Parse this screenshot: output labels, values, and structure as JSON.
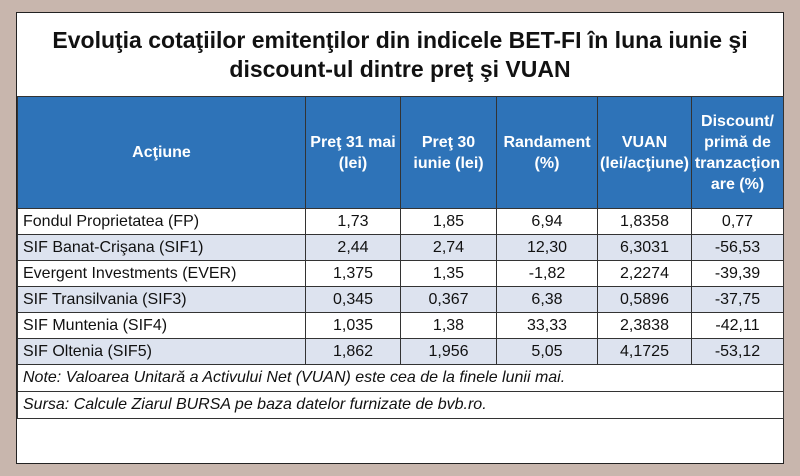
{
  "title": {
    "line1": "Evoluţia cotaţiilor emitenţilor din indicele BET-FI în luna iunie şi",
    "line2": "discount-ul dintre preţ şi VUAN"
  },
  "table": {
    "headers": [
      "Acţiune",
      "Preţ 31 mai (lei)",
      "Preţ 30 iunie (lei)",
      "Randament (%)",
      "VUAN (lei/acţiune)",
      "Discount/ primă de tranzacţionare (%)"
    ],
    "rows": [
      [
        "Fondul Proprietatea (FP)",
        "1,73",
        "1,85",
        "6,94",
        "1,8358",
        "0,77"
      ],
      [
        "SIF Banat-Crişana (SIF1)",
        "2,44",
        "2,74",
        "12,30",
        "6,3031",
        "-56,53"
      ],
      [
        "Evergent Investments (EVER)",
        "1,375",
        "1,35",
        "-1,82",
        "2,2274",
        "-39,39"
      ],
      [
        "SIF Transilvania (SIF3)",
        "0,345",
        "0,367",
        "6,38",
        "0,5896",
        "-37,75"
      ],
      [
        "SIF Muntenia (SIF4)",
        "1,035",
        "1,38",
        "33,33",
        "2,3838",
        "-42,11"
      ],
      [
        "SIF Oltenia (SIF5)",
        "1,862",
        "1,956",
        "5,05",
        "4,1725",
        "-53,12"
      ]
    ]
  },
  "notes": {
    "note": "Note: Valoarea Unitară a Activului Net (VUAN) este cea de la finele lunii mai.",
    "source": "Sursa: Calcule Ziarul BURSA pe baza datelor furnizate de bvb.ro."
  },
  "colors": {
    "header_bg": "#2e73b8",
    "row_alt_bg": "#dde3ef",
    "page_bg": "#c8b6ad"
  }
}
